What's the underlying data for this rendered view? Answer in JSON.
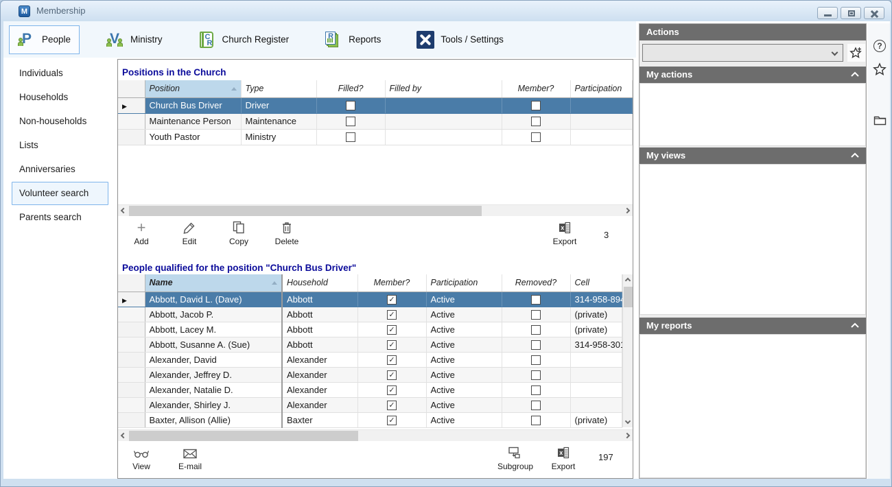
{
  "window": {
    "title": "Membership",
    "app_icon_letter": "M",
    "controls": [
      "minimize",
      "maximize",
      "close"
    ]
  },
  "toolbar": {
    "items": [
      {
        "label": "People",
        "selected": true
      },
      {
        "label": "Ministry",
        "selected": false
      },
      {
        "label": "Church Register",
        "selected": false
      },
      {
        "label": "Reports",
        "selected": false
      },
      {
        "label": "Tools / Settings",
        "selected": false
      }
    ]
  },
  "sidebar": {
    "items": [
      {
        "label": "Individuals",
        "selected": false
      },
      {
        "label": "Households",
        "selected": false
      },
      {
        "label": "Non-households",
        "selected": false
      },
      {
        "label": "Lists",
        "selected": false
      },
      {
        "label": "Anniversaries",
        "selected": false
      },
      {
        "label": "Volunteer search",
        "selected": true
      },
      {
        "label": "Parents search",
        "selected": false
      }
    ]
  },
  "positions_section": {
    "title": "Positions in the Church",
    "sorted_by": "Position",
    "columns": [
      "Position",
      "Type",
      "Filled?",
      "Filled by",
      "Member?",
      "Participation"
    ],
    "rows": [
      {
        "position": "Church Bus Driver",
        "type": "Driver",
        "filled": false,
        "filled_by": "",
        "member": false,
        "participation": "",
        "selected": true
      },
      {
        "position": "Maintenance Person",
        "type": "Maintenance",
        "filled": false,
        "filled_by": "",
        "member": false,
        "participation": "",
        "selected": false
      },
      {
        "position": "Youth Pastor",
        "type": "Ministry",
        "filled": false,
        "filled_by": "",
        "member": false,
        "participation": "",
        "selected": false
      }
    ],
    "actions": {
      "add": "Add",
      "edit": "Edit",
      "copy": "Copy",
      "delete": "Delete",
      "export": "Export"
    },
    "count": "3"
  },
  "people_section": {
    "title": "People qualified for the position \"Church Bus Driver\"",
    "sorted_by": "Name",
    "columns": [
      "Name",
      "Household",
      "Member?",
      "Participation",
      "Removed?",
      "Cell"
    ],
    "rows": [
      {
        "name": "Abbott, David L. (Dave)",
        "household": "Abbott",
        "member": true,
        "participation": "Active",
        "removed": false,
        "cell": "314-958-894",
        "selected": true
      },
      {
        "name": "Abbott, Jacob P.",
        "household": "Abbott",
        "member": true,
        "participation": "Active",
        "removed": false,
        "cell": "(private)",
        "selected": false
      },
      {
        "name": "Abbott, Lacey M.",
        "household": "Abbott",
        "member": true,
        "participation": "Active",
        "removed": false,
        "cell": "(private)",
        "selected": false
      },
      {
        "name": "Abbott, Susanne A. (Sue)",
        "household": "Abbott",
        "member": true,
        "participation": "Active",
        "removed": false,
        "cell": "314-958-301",
        "selected": false
      },
      {
        "name": "Alexander, David",
        "household": "Alexander",
        "member": true,
        "participation": "Active",
        "removed": false,
        "cell": "",
        "selected": false
      },
      {
        "name": "Alexander, Jeffrey D.",
        "household": "Alexander",
        "member": true,
        "participation": "Active",
        "removed": false,
        "cell": "",
        "selected": false
      },
      {
        "name": "Alexander, Natalie D.",
        "household": "Alexander",
        "member": true,
        "participation": "Active",
        "removed": false,
        "cell": "",
        "selected": false
      },
      {
        "name": "Alexander, Shirley J.",
        "household": "Alexander",
        "member": true,
        "participation": "Active",
        "removed": false,
        "cell": "",
        "selected": false
      },
      {
        "name": "Baxter, Allison (Allie)",
        "household": "Baxter",
        "member": true,
        "participation": "Active",
        "removed": false,
        "cell": "(private)",
        "selected": false
      }
    ],
    "actions": {
      "view": "View",
      "email": "E-mail",
      "subgroup": "Subgroup",
      "export": "Export"
    },
    "count": "197"
  },
  "right_panel": {
    "actions_title": "Actions",
    "action_dropdown_value": "",
    "sections": [
      {
        "title": "My actions"
      },
      {
        "title": "My views"
      },
      {
        "title": "My reports"
      }
    ]
  },
  "colors": {
    "selected_row": "#4a7ca8",
    "sorted_header_bg": "#bdd8eb",
    "section_title_text": "#0a0a9a",
    "panel_header_bg": "#6d6d6d",
    "toolbar_selected_border": "#7eb4ea"
  }
}
